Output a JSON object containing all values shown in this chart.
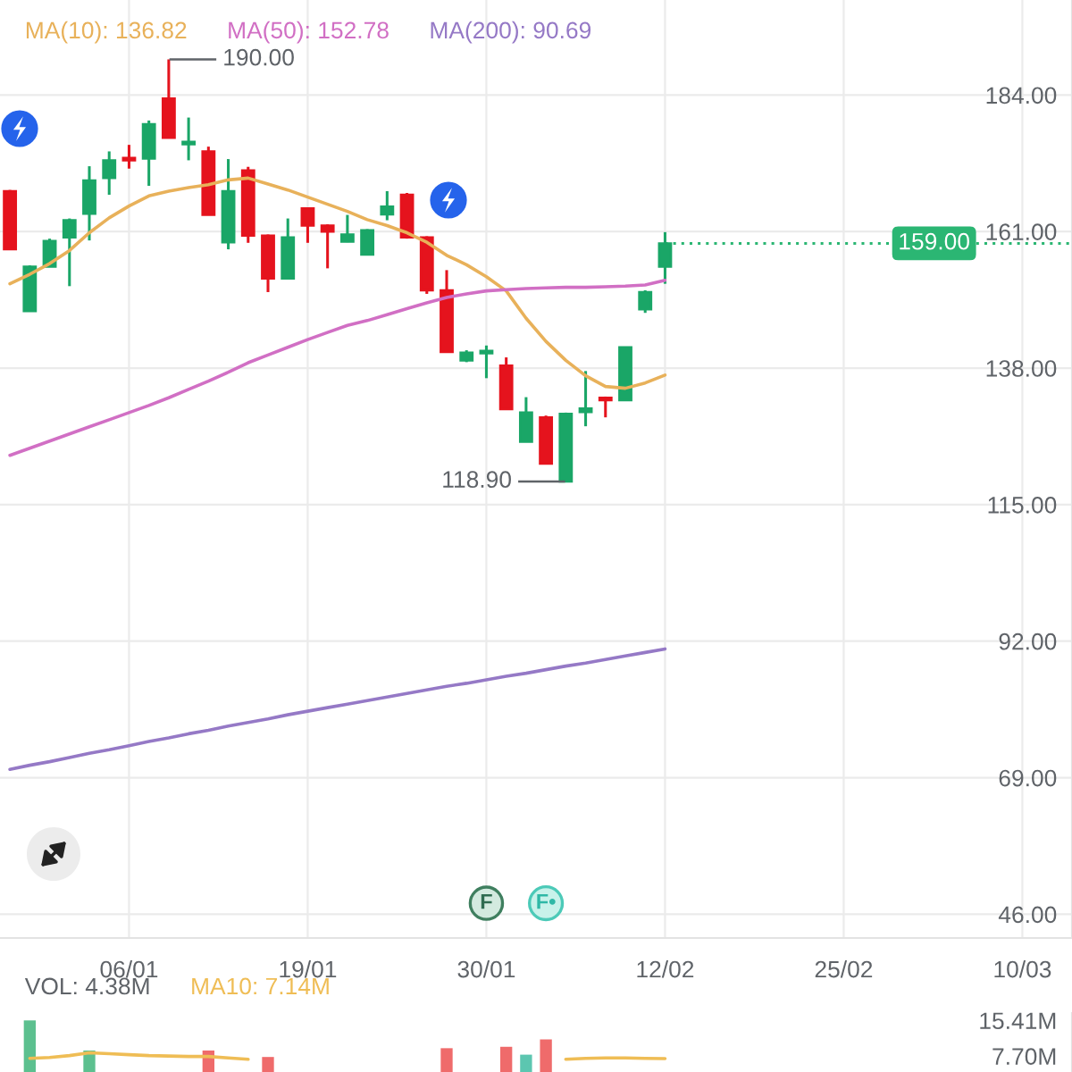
{
  "chart_data": [
    {
      "type": "candlestick",
      "legend": "top left",
      "grid": true,
      "categories": [
        null,
        null,
        null,
        null,
        null,
        null,
        "06/01",
        null,
        null,
        null,
        null,
        null,
        null,
        null,
        null,
        "19/01",
        null,
        null,
        null,
        null,
        null,
        null,
        null,
        null,
        "30/01",
        null,
        null,
        null,
        null,
        null,
        null,
        null,
        null,
        "12/02",
        null,
        null,
        null,
        null,
        null,
        null,
        null,
        null,
        "25/02",
        null,
        null,
        null,
        null,
        null,
        null,
        null,
        null,
        "10/03",
        null,
        null
      ],
      "ohlc": [
        [
          167.8,
          168.0,
          158.0,
          158.0
        ],
        [
          147.6,
          155.3,
          147.6,
          155.1
        ],
        [
          155.1,
          159.8,
          155.1,
          159.4
        ],
        [
          160.0,
          163.2,
          151.8,
          162.9
        ],
        [
          164.0,
          172.0,
          159.5,
          169.6
        ],
        [
          170.0,
          174.5,
          167.2,
          173.0
        ],
        [
          173.4,
          175.6,
          171.6,
          173.0
        ],
        [
          173.3,
          179.7,
          168.7,
          179.1
        ],
        [
          183.4,
          190.0,
          176.8,
          176.8
        ],
        [
          175.7,
          180.2,
          173.0,
          176.1
        ],
        [
          174.5,
          175.3,
          163.8,
          163.8
        ],
        [
          159.2,
          173.2,
          158.0,
          167.8
        ],
        [
          171.3,
          171.9,
          159.1,
          160.3
        ],
        [
          160.3,
          160.5,
          150.8,
          153.1
        ],
        [
          153.1,
          163.2,
          153.1,
          160.0
        ],
        [
          164.9,
          165.0,
          159.1,
          162.0
        ],
        [
          162.0,
          162.2,
          154.8,
          161.0
        ],
        [
          159.3,
          163.8,
          159.2,
          160.5
        ],
        [
          157.1,
          161.4,
          157.0,
          161.2
        ],
        [
          163.9,
          167.8,
          162.9,
          165.2
        ],
        [
          167.2,
          167.5,
          159.8,
          160.0
        ],
        [
          160.0,
          160.2,
          150.5,
          151.1
        ],
        [
          151.1,
          154.5,
          140.7,
          140.7
        ],
        [
          139.3,
          141.0,
          139.0,
          140.6
        ],
        [
          140.5,
          141.8,
          136.3,
          140.9
        ],
        [
          138.4,
          139.8,
          131.1,
          131.1
        ],
        [
          125.6,
          133.1,
          125.6,
          130.5
        ],
        [
          129.7,
          130.0,
          121.9,
          121.9
        ],
        [
          118.9,
          130.5,
          118.9,
          130.3
        ],
        [
          130.6,
          137.5,
          128.2,
          131.2
        ],
        [
          133.0,
          133.2,
          129.7,
          132.6
        ],
        [
          132.6,
          141.5,
          132.6,
          141.5
        ],
        [
          147.9,
          151.1,
          147.3,
          150.8
        ],
        [
          155.1,
          160.9,
          152.2,
          159.0
        ],
        null,
        null,
        null,
        null,
        null,
        null,
        null,
        null,
        null,
        null,
        null,
        null,
        null,
        null,
        null,
        null,
        null,
        null,
        null,
        null
      ],
      "colors": [
        "#e5131d",
        "#1aa667",
        "#1aa667",
        "#1aa667",
        "#1aa667",
        "#1aa667",
        "#e5131d",
        "#1aa667",
        "#e5131d",
        "#1aa667",
        "#e5131d",
        "#1aa667",
        "#e5131d",
        "#e5131d",
        "#1aa667",
        "#e5131d",
        "#e5131d",
        "#1aa667",
        "#1aa667",
        "#1aa667",
        "#e5131d",
        "#e5131d",
        "#e5131d",
        "#1aa667",
        "#1aa667",
        "#e5131d",
        "#1aa667",
        "#e5131d",
        "#1aa667",
        "#1aa667",
        "#e5131d",
        "#1aa667",
        "#1aa667",
        "#1aa667",
        null,
        null,
        null,
        null,
        null,
        null,
        null,
        null,
        null,
        null,
        null,
        null,
        null,
        null,
        null,
        null,
        null,
        null,
        null,
        null
      ],
      "series": [
        {
          "type": "line",
          "name": "MA(10): 136.82",
          "color": "#e8b15a",
          "values": [
            152.2,
            153.8,
            155.6,
            157.8,
            160.8,
            163.3,
            165.3,
            167.0,
            167.8,
            168.4,
            168.9,
            169.7,
            170.0,
            169.0,
            168.0,
            166.8,
            165.6,
            164.4,
            163.0,
            162.0,
            160.8,
            159.2,
            157.0,
            155.4,
            153.4,
            151.0,
            146.4,
            142.5,
            139.3,
            136.7,
            134.9,
            134.6,
            135.5,
            136.82,
            null,
            null,
            null,
            null,
            null,
            null,
            null,
            null,
            null,
            null,
            null,
            null,
            null,
            null,
            null,
            null,
            null,
            null,
            null,
            null
          ]
        },
        {
          "type": "line",
          "name": "MA(50): 152.78",
          "color": "#d16fc4",
          "values": [
            123.3,
            124.5,
            125.7,
            126.9,
            128.1,
            129.3,
            130.5,
            131.7,
            133.0,
            134.4,
            135.8,
            137.3,
            138.9,
            140.2,
            141.5,
            142.8,
            144.0,
            145.2,
            146.0,
            147.0,
            148.0,
            149.0,
            149.9,
            150.5,
            151.0,
            151.2,
            151.4,
            151.5,
            151.6,
            151.6,
            151.7,
            151.8,
            152.0,
            152.78,
            null,
            null,
            null,
            null,
            null,
            null,
            null,
            null,
            null,
            null,
            null,
            null,
            null,
            null,
            null,
            null,
            null,
            null,
            null,
            null
          ]
        },
        {
          "type": "line",
          "name": "MA(200): 90.69",
          "color": "#9579c6",
          "values": [
            70.4,
            71.1,
            71.7,
            72.4,
            73.1,
            73.7,
            74.4,
            75.1,
            75.7,
            76.4,
            77.0,
            77.7,
            78.3,
            78.9,
            79.6,
            80.2,
            80.8,
            81.4,
            82.0,
            82.6,
            83.2,
            83.8,
            84.4,
            84.9,
            85.5,
            86.1,
            86.6,
            87.2,
            87.8,
            88.3,
            88.9,
            89.5,
            90.1,
            90.69,
            null,
            null,
            null,
            null,
            null,
            null,
            null,
            null,
            null,
            null,
            null,
            null,
            null,
            null,
            null,
            null,
            null,
            null,
            null,
            null
          ]
        }
      ],
      "ylim": [
        42,
        200
      ],
      "yticks": [
        {
          "value": 46,
          "label": "46.00"
        },
        {
          "value": 69,
          "label": "69.00"
        },
        {
          "value": 92,
          "label": "92.00"
        },
        {
          "value": 115,
          "label": "115.00"
        },
        {
          "value": 138,
          "label": "138.00"
        },
        {
          "value": 161,
          "label": "161.00"
        },
        {
          "value": 184,
          "label": "184.00"
        }
      ],
      "ref_lines": [
        {
          "axis": "y",
          "value": 159,
          "label": "159.00",
          "color": "#2bb673",
          "line_style": "dotted"
        }
      ],
      "annotations": [
        "190.00",
        "118.90",
        {
          "text": "F",
          "x": "30/01"
        },
        "F•"
      ]
    },
    {
      "type": "bar",
      "title": "VOL: 4.38M",
      "legend": "top left",
      "tick_labels": "y",
      "categories": [
        null,
        null,
        null,
        null,
        null,
        null,
        null,
        null,
        null,
        null,
        null,
        null,
        null,
        null,
        null,
        null,
        null,
        null,
        null,
        null,
        null,
        null,
        null,
        null,
        null,
        null,
        null,
        null,
        null,
        null,
        null,
        null,
        null,
        null,
        null,
        null,
        null,
        null,
        null,
        null,
        null,
        null,
        null,
        null,
        null,
        null,
        null,
        null,
        null,
        null,
        null,
        null,
        null,
        null
      ],
      "series": [
        {
          "type": "bar",
          "values": [
            null,
            15.41,
            null,
            null,
            8.9,
            null,
            null,
            null,
            null,
            null,
            8.9,
            null,
            null,
            7.5,
            null,
            null,
            null,
            null,
            null,
            null,
            null,
            null,
            9.4,
            null,
            null,
            9.7,
            8.0,
            11.3,
            null,
            null,
            null,
            null,
            null,
            null,
            null,
            null,
            null,
            null,
            null,
            null,
            null,
            null,
            null,
            null,
            null,
            null,
            null,
            null,
            null,
            null,
            null,
            null,
            null,
            null
          ],
          "colors": [
            null,
            "#5cc08f",
            null,
            null,
            "#5cc08f",
            null,
            null,
            null,
            null,
            null,
            "#ef6b6b",
            null,
            null,
            "#ef6b6b",
            null,
            null,
            null,
            null,
            null,
            null,
            null,
            null,
            "#ef6b6b",
            null,
            null,
            "#ef6b6b",
            "#5cc6b0",
            "#ef6b6b",
            null,
            null,
            null,
            null,
            null,
            null,
            null,
            null,
            null,
            null,
            null,
            null,
            null,
            null,
            null,
            null,
            null,
            null,
            null,
            null,
            null,
            null,
            null,
            null,
            null,
            null
          ]
        },
        {
          "type": "line",
          "name": "MA10: 7.14M",
          "color": "#efbd55",
          "values": [
            null,
            7.2,
            7.4,
            7.8,
            8.4,
            8.2,
            8.0,
            7.8,
            7.7,
            7.6,
            7.6,
            7.3,
            7.0,
            null,
            null,
            null,
            null,
            null,
            null,
            null,
            null,
            null,
            null,
            null,
            null,
            null,
            null,
            null,
            7.0,
            7.2,
            7.3,
            7.3,
            7.2,
            7.14,
            null,
            null,
            null,
            null,
            null,
            null,
            null,
            null,
            null,
            null,
            null,
            null,
            null,
            null,
            null,
            null,
            null,
            null,
            null,
            null
          ]
        }
      ],
      "ylim": [
        0,
        17
      ],
      "yticks": [
        {
          "value": 7.7,
          "label": "7.70M"
        },
        {
          "value": 15.41,
          "label": "15.41M"
        }
      ]
    }
  ]
}
